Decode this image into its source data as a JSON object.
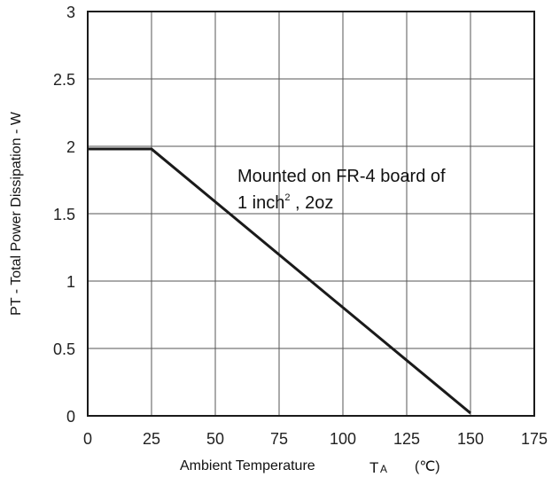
{
  "chart_data": {
    "type": "line",
    "xlabel": "Ambient Temperature",
    "xlabel_symbol": "T",
    "xlabel_subscript": "A",
    "xlabel_unit": "(℃)",
    "ylabel": "PT - Total Power Dissipation - W",
    "xlim": [
      0,
      175
    ],
    "ylim": [
      0,
      3
    ],
    "x_ticks": [
      0,
      25,
      50,
      75,
      100,
      125,
      150,
      175
    ],
    "y_ticks": [
      0,
      0.5,
      1,
      1.5,
      2,
      2.5,
      3
    ],
    "x_tick_labels": [
      "0",
      "25",
      "50",
      "75",
      "100",
      "125",
      "150",
      "175"
    ],
    "y_tick_labels": [
      "0",
      "0.5",
      "1",
      "1.5",
      "2",
      "2.5",
      "3"
    ],
    "grid": true,
    "series": [
      {
        "x": [
          0,
          25,
          150
        ],
        "y": [
          1.98,
          1.98,
          0.02
        ],
        "color": "#1a1a1a"
      }
    ],
    "annotation": {
      "line1": "Mounted on FR-4 board of",
      "line2_prefix": "1 inch",
      "line2_superscript": "2",
      "line2_suffix": " , 2oz"
    }
  }
}
